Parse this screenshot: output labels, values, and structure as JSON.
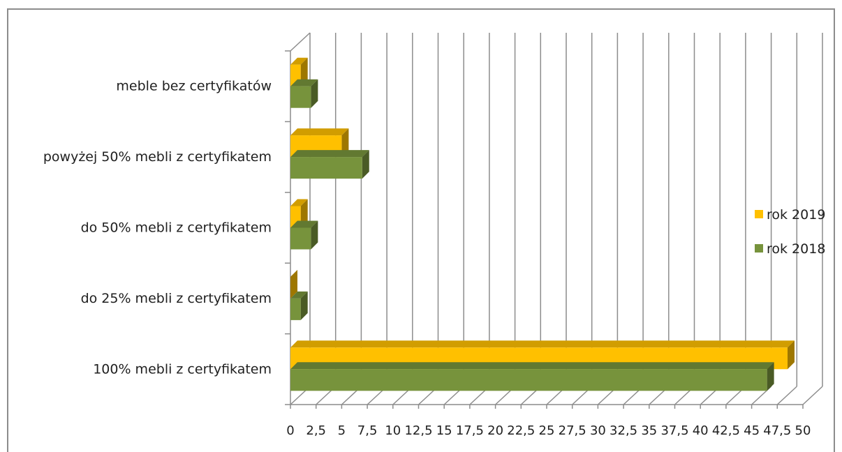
{
  "chart_data": {
    "type": "bar",
    "orientation": "horizontal",
    "style": "3d-clustered",
    "categories": [
      "100% mebli z certyfikatem",
      "do 25% mebli z certyfikatem",
      "do 50% mebli z certyfikatem",
      "powyżej 50% mebli z certyfikatem",
      "meble bez certyfikatów"
    ],
    "series": [
      {
        "name": "rok 2019",
        "color": "#ffc000",
        "values": [
          48.5,
          0,
          1,
          5,
          1
        ]
      },
      {
        "name": "rok 2018",
        "color": "#77933c",
        "values": [
          46.5,
          1,
          2,
          7,
          2
        ]
      }
    ],
    "x_ticks": [
      "0",
      "2,5",
      "5",
      "7,5",
      "10",
      "12,5",
      "15",
      "17,5",
      "20",
      "22,5",
      "25",
      "27,5",
      "30",
      "32,5",
      "35",
      "37,5",
      "40",
      "42,5",
      "45",
      "47,5",
      "50"
    ],
    "xlim": [
      0,
      50
    ],
    "grid": true,
    "legend_position": "right"
  }
}
